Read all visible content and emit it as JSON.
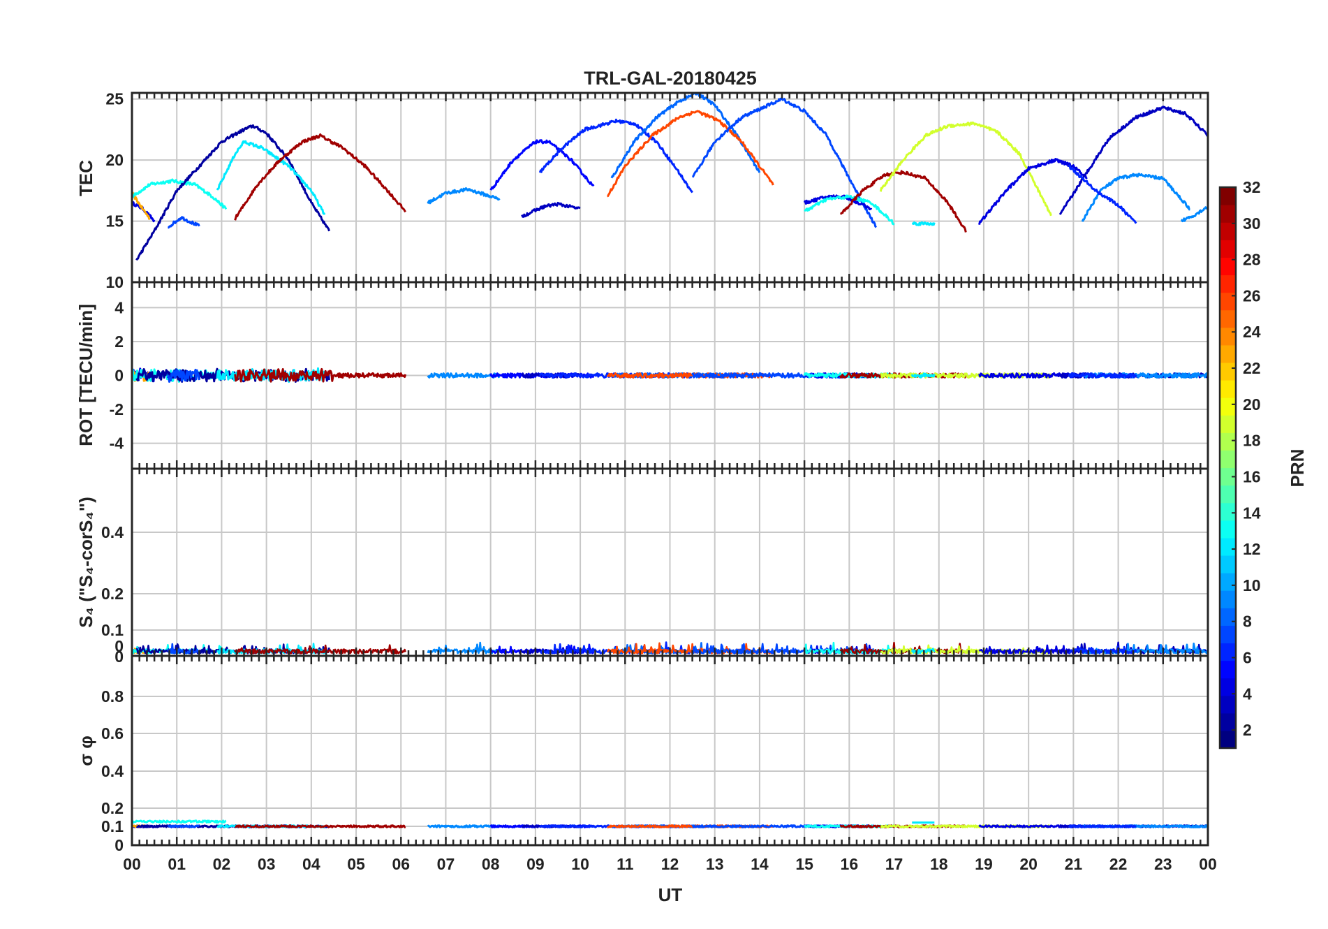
{
  "chart_data": {
    "type": "line",
    "title": "TRL-GAL-20180425",
    "xlabel": "UT",
    "xlim": [
      0,
      24
    ],
    "x_tick_labels": [
      "00",
      "01",
      "02",
      "03",
      "04",
      "05",
      "06",
      "07",
      "08",
      "09",
      "10",
      "11",
      "12",
      "13",
      "14",
      "15",
      "16",
      "17",
      "18",
      "19",
      "20",
      "21",
      "22",
      "23",
      "00"
    ],
    "grid": true,
    "colorbar": {
      "label": "PRN",
      "range": [
        1,
        32
      ],
      "colormap": "jet",
      "tick_labels": [
        "2",
        "4",
        "6",
        "8",
        "10",
        "12",
        "14",
        "16",
        "18",
        "20",
        "22",
        "24",
        "26",
        "28",
        "30",
        "32"
      ]
    },
    "panels": [
      {
        "ylabel": "TEC",
        "ylim": [
          10,
          25.5
        ],
        "tick_labels": [
          "10",
          "15",
          "20",
          "25"
        ]
      },
      {
        "ylabel": "ROT [TECU/min]",
        "ylim": [
          -5.5,
          5.5
        ],
        "tick_labels": [
          "-4",
          "-2",
          "0",
          "2",
          "4"
        ]
      },
      {
        "ylabel": "S₄ (\"S₄-corS₄\")",
        "ylim": [
          0,
          0.6
        ],
        "tick_labels": [
          "0",
          "0",
          "0.1",
          "0.2",
          "0.4"
        ]
      },
      {
        "ylabel": "σ φ",
        "ylim": [
          0,
          1
        ],
        "tick_labels": [
          "0",
          "0.1",
          "0.2",
          "0.4",
          "0.6",
          "0.8"
        ]
      }
    ],
    "tec_arcs": [
      {
        "prn": 4,
        "start": 0.0,
        "end": 0.5,
        "points": [
          [
            0.0,
            16.5
          ],
          [
            0.25,
            16.0
          ],
          [
            0.5,
            15.0
          ]
        ]
      },
      {
        "prn": 23,
        "start": 0.0,
        "end": 0.4,
        "points": [
          [
            0.0,
            17.3
          ],
          [
            0.2,
            16.2
          ],
          [
            0.4,
            15.2
          ]
        ]
      },
      {
        "prn": 13,
        "start": 0.0,
        "end": 2.1,
        "points": [
          [
            0.0,
            17.0
          ],
          [
            0.4,
            18.0
          ],
          [
            0.9,
            18.3
          ],
          [
            1.4,
            18.0
          ],
          [
            1.8,
            17.0
          ],
          [
            2.1,
            16.0
          ]
        ]
      },
      {
        "prn": 2,
        "start": 0.1,
        "end": 4.4,
        "points": [
          [
            0.1,
            11.8
          ],
          [
            0.5,
            14.2
          ],
          [
            1.0,
            17.5
          ],
          [
            1.5,
            19.5
          ],
          [
            2.0,
            21.5
          ],
          [
            2.5,
            22.5
          ],
          [
            2.7,
            22.8
          ],
          [
            3.0,
            22.2
          ],
          [
            3.5,
            20.0
          ],
          [
            4.0,
            16.5
          ],
          [
            4.4,
            14.2
          ]
        ]
      },
      {
        "prn": 7,
        "start": 0.8,
        "end": 1.5,
        "points": [
          [
            0.8,
            14.5
          ],
          [
            1.1,
            15.3
          ],
          [
            1.5,
            14.6
          ]
        ]
      },
      {
        "prn": 12,
        "start": 1.9,
        "end": 4.3,
        "points": [
          [
            1.9,
            17.5
          ],
          [
            2.3,
            20.5
          ],
          [
            2.5,
            21.5
          ],
          [
            2.9,
            21.0
          ],
          [
            3.5,
            19.5
          ],
          [
            4.0,
            17.5
          ],
          [
            4.3,
            15.5
          ]
        ]
      },
      {
        "prn": 31,
        "start": 2.3,
        "end": 6.1,
        "points": [
          [
            2.3,
            15.2
          ],
          [
            2.8,
            18.0
          ],
          [
            3.3,
            20.0
          ],
          [
            3.8,
            21.5
          ],
          [
            4.2,
            22.0
          ],
          [
            4.7,
            21.0
          ],
          [
            5.2,
            19.5
          ],
          [
            5.7,
            17.5
          ],
          [
            6.1,
            15.8
          ]
        ]
      },
      {
        "prn": 9,
        "start": 6.6,
        "end": 8.2,
        "points": [
          [
            6.6,
            16.5
          ],
          [
            7.0,
            17.3
          ],
          [
            7.5,
            17.6
          ],
          [
            8.2,
            16.8
          ]
        ]
      },
      {
        "prn": 5,
        "start": 8.0,
        "end": 10.3,
        "points": [
          [
            8.0,
            17.5
          ],
          [
            8.5,
            20.0
          ],
          [
            9.0,
            21.5
          ],
          [
            9.3,
            21.5
          ],
          [
            9.8,
            20.0
          ],
          [
            10.3,
            17.8
          ]
        ]
      },
      {
        "prn": 3,
        "start": 8.7,
        "end": 10.0,
        "points": [
          [
            8.7,
            15.4
          ],
          [
            9.2,
            16.2
          ],
          [
            9.5,
            16.4
          ],
          [
            10.0,
            16.0
          ]
        ]
      },
      {
        "prn": 6,
        "start": 9.1,
        "end": 12.5,
        "points": [
          [
            9.1,
            19.0
          ],
          [
            9.6,
            21.0
          ],
          [
            10.1,
            22.5
          ],
          [
            10.8,
            23.2
          ],
          [
            11.2,
            23.0
          ],
          [
            11.7,
            21.5
          ],
          [
            12.2,
            19.0
          ],
          [
            12.5,
            17.3
          ]
        ]
      },
      {
        "prn": 8,
        "start": 10.7,
        "end": 14.0,
        "points": [
          [
            10.7,
            18.5
          ],
          [
            11.2,
            21.5
          ],
          [
            11.7,
            23.5
          ],
          [
            12.2,
            24.8
          ],
          [
            12.6,
            25.5
          ],
          [
            13.0,
            24.5
          ],
          [
            13.5,
            22.0
          ],
          [
            14.0,
            19.0
          ]
        ]
      },
      {
        "prn": 26,
        "start": 10.6,
        "end": 14.3,
        "points": [
          [
            10.6,
            17.0
          ],
          [
            11.0,
            19.5
          ],
          [
            11.6,
            22.0
          ],
          [
            12.2,
            23.5
          ],
          [
            12.6,
            24.0
          ],
          [
            13.1,
            23.2
          ],
          [
            13.6,
            21.5
          ],
          [
            14.3,
            18.0
          ]
        ]
      },
      {
        "prn": 7,
        "start": 12.5,
        "end": 16.6,
        "points": [
          [
            12.5,
            18.5
          ],
          [
            13.0,
            21.5
          ],
          [
            13.6,
            23.5
          ],
          [
            14.5,
            25.0
          ],
          [
            15.0,
            24.0
          ],
          [
            15.5,
            22.0
          ],
          [
            16.0,
            18.5
          ],
          [
            16.6,
            14.5
          ]
        ]
      },
      {
        "prn": 4,
        "start": 15.0,
        "end": 16.5,
        "points": [
          [
            15.0,
            16.5
          ],
          [
            15.5,
            17.0
          ],
          [
            15.9,
            17.0
          ],
          [
            16.5,
            16.0
          ]
        ]
      },
      {
        "prn": 13,
        "start": 15.0,
        "end": 17.0,
        "points": [
          [
            15.0,
            15.8
          ],
          [
            15.5,
            16.8
          ],
          [
            16.0,
            17.0
          ],
          [
            16.5,
            16.5
          ],
          [
            17.0,
            14.8
          ]
        ]
      },
      {
        "prn": 31,
        "start": 15.8,
        "end": 18.6,
        "points": [
          [
            15.8,
            15.5
          ],
          [
            16.3,
            17.5
          ],
          [
            16.8,
            18.8
          ],
          [
            17.2,
            19.0
          ],
          [
            17.7,
            18.5
          ],
          [
            18.2,
            16.5
          ],
          [
            18.6,
            14.2
          ]
        ]
      },
      {
        "prn": 19,
        "start": 16.7,
        "end": 20.5,
        "points": [
          [
            16.7,
            17.5
          ],
          [
            17.2,
            20.0
          ],
          [
            17.7,
            22.0
          ],
          [
            18.2,
            22.8
          ],
          [
            18.8,
            23.0
          ],
          [
            19.3,
            22.3
          ],
          [
            19.8,
            20.5
          ],
          [
            20.5,
            15.5
          ]
        ]
      },
      {
        "prn": 12,
        "start": 17.4,
        "end": 17.9,
        "points": [
          [
            17.4,
            14.8
          ],
          [
            17.9,
            14.8
          ]
        ]
      },
      {
        "prn": 4,
        "start": 18.9,
        "end": 21.3,
        "points": [
          [
            18.9,
            14.8
          ],
          [
            19.5,
            17.5
          ],
          [
            20.0,
            19.3
          ],
          [
            20.6,
            20.0
          ],
          [
            21.0,
            19.5
          ],
          [
            21.3,
            18.5
          ]
        ]
      },
      {
        "prn": 3,
        "start": 20.7,
        "end": 24.0,
        "points": [
          [
            20.7,
            15.5
          ],
          [
            21.3,
            19.0
          ],
          [
            21.8,
            21.8
          ],
          [
            22.4,
            23.5
          ],
          [
            23.0,
            24.3
          ],
          [
            23.5,
            23.8
          ],
          [
            24.0,
            22.0
          ]
        ]
      },
      {
        "prn": 9,
        "start": 21.2,
        "end": 23.6,
        "points": [
          [
            21.2,
            15.0
          ],
          [
            21.6,
            17.5
          ],
          [
            22.0,
            18.5
          ],
          [
            22.4,
            18.8
          ],
          [
            23.0,
            18.5
          ],
          [
            23.6,
            16.0
          ]
        ]
      },
      {
        "prn": 6,
        "start": 20.9,
        "end": 22.4,
        "points": [
          [
            20.9,
            19.5
          ],
          [
            21.5,
            17.5
          ],
          [
            22.0,
            16.3
          ],
          [
            22.4,
            14.8
          ]
        ]
      },
      {
        "prn": 9,
        "start": 23.4,
        "end": 24.0,
        "points": [
          [
            23.4,
            15.0
          ],
          [
            23.7,
            15.5
          ],
          [
            24.0,
            16.2
          ]
        ]
      }
    ]
  }
}
